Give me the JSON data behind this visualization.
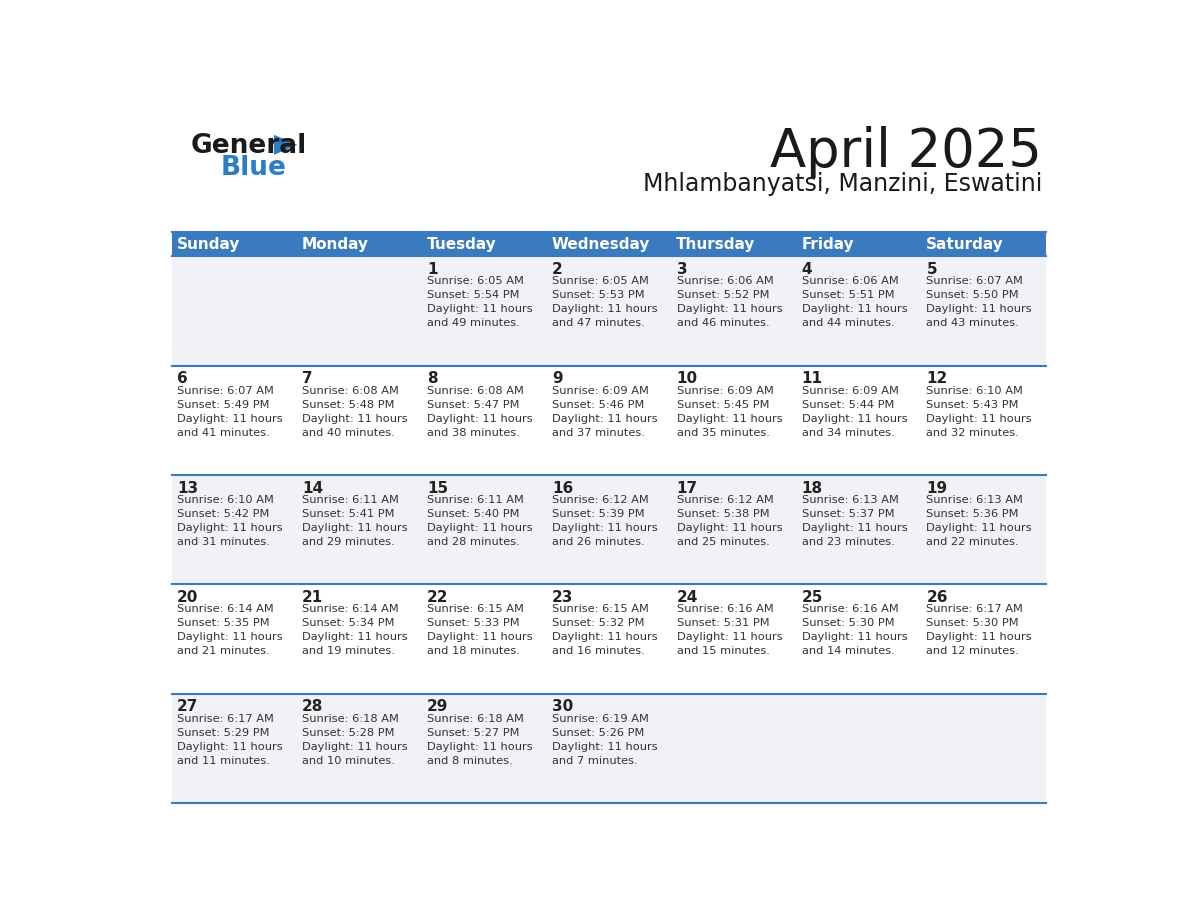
{
  "title": "April 2025",
  "subtitle": "Mhlambanyatsi, Manzini, Eswatini",
  "days_of_week": [
    "Sunday",
    "Monday",
    "Tuesday",
    "Wednesday",
    "Thursday",
    "Friday",
    "Saturday"
  ],
  "header_bg": "#3a7bbf",
  "header_text": "#ffffff",
  "row_bg_odd": "#f0f2f5",
  "row_bg_even": "#ffffff",
  "border_color": "#3a7bbf",
  "text_color": "#333333",
  "day_num_color": "#222222",
  "calendar_data": [
    [
      {
        "day": "",
        "info": ""
      },
      {
        "day": "",
        "info": ""
      },
      {
        "day": "1",
        "info": "Sunrise: 6:05 AM\nSunset: 5:54 PM\nDaylight: 11 hours\nand 49 minutes."
      },
      {
        "day": "2",
        "info": "Sunrise: 6:05 AM\nSunset: 5:53 PM\nDaylight: 11 hours\nand 47 minutes."
      },
      {
        "day": "3",
        "info": "Sunrise: 6:06 AM\nSunset: 5:52 PM\nDaylight: 11 hours\nand 46 minutes."
      },
      {
        "day": "4",
        "info": "Sunrise: 6:06 AM\nSunset: 5:51 PM\nDaylight: 11 hours\nand 44 minutes."
      },
      {
        "day": "5",
        "info": "Sunrise: 6:07 AM\nSunset: 5:50 PM\nDaylight: 11 hours\nand 43 minutes."
      }
    ],
    [
      {
        "day": "6",
        "info": "Sunrise: 6:07 AM\nSunset: 5:49 PM\nDaylight: 11 hours\nand 41 minutes."
      },
      {
        "day": "7",
        "info": "Sunrise: 6:08 AM\nSunset: 5:48 PM\nDaylight: 11 hours\nand 40 minutes."
      },
      {
        "day": "8",
        "info": "Sunrise: 6:08 AM\nSunset: 5:47 PM\nDaylight: 11 hours\nand 38 minutes."
      },
      {
        "day": "9",
        "info": "Sunrise: 6:09 AM\nSunset: 5:46 PM\nDaylight: 11 hours\nand 37 minutes."
      },
      {
        "day": "10",
        "info": "Sunrise: 6:09 AM\nSunset: 5:45 PM\nDaylight: 11 hours\nand 35 minutes."
      },
      {
        "day": "11",
        "info": "Sunrise: 6:09 AM\nSunset: 5:44 PM\nDaylight: 11 hours\nand 34 minutes."
      },
      {
        "day": "12",
        "info": "Sunrise: 6:10 AM\nSunset: 5:43 PM\nDaylight: 11 hours\nand 32 minutes."
      }
    ],
    [
      {
        "day": "13",
        "info": "Sunrise: 6:10 AM\nSunset: 5:42 PM\nDaylight: 11 hours\nand 31 minutes."
      },
      {
        "day": "14",
        "info": "Sunrise: 6:11 AM\nSunset: 5:41 PM\nDaylight: 11 hours\nand 29 minutes."
      },
      {
        "day": "15",
        "info": "Sunrise: 6:11 AM\nSunset: 5:40 PM\nDaylight: 11 hours\nand 28 minutes."
      },
      {
        "day": "16",
        "info": "Sunrise: 6:12 AM\nSunset: 5:39 PM\nDaylight: 11 hours\nand 26 minutes."
      },
      {
        "day": "17",
        "info": "Sunrise: 6:12 AM\nSunset: 5:38 PM\nDaylight: 11 hours\nand 25 minutes."
      },
      {
        "day": "18",
        "info": "Sunrise: 6:13 AM\nSunset: 5:37 PM\nDaylight: 11 hours\nand 23 minutes."
      },
      {
        "day": "19",
        "info": "Sunrise: 6:13 AM\nSunset: 5:36 PM\nDaylight: 11 hours\nand 22 minutes."
      }
    ],
    [
      {
        "day": "20",
        "info": "Sunrise: 6:14 AM\nSunset: 5:35 PM\nDaylight: 11 hours\nand 21 minutes."
      },
      {
        "day": "21",
        "info": "Sunrise: 6:14 AM\nSunset: 5:34 PM\nDaylight: 11 hours\nand 19 minutes."
      },
      {
        "day": "22",
        "info": "Sunrise: 6:15 AM\nSunset: 5:33 PM\nDaylight: 11 hours\nand 18 minutes."
      },
      {
        "day": "23",
        "info": "Sunrise: 6:15 AM\nSunset: 5:32 PM\nDaylight: 11 hours\nand 16 minutes."
      },
      {
        "day": "24",
        "info": "Sunrise: 6:16 AM\nSunset: 5:31 PM\nDaylight: 11 hours\nand 15 minutes."
      },
      {
        "day": "25",
        "info": "Sunrise: 6:16 AM\nSunset: 5:30 PM\nDaylight: 11 hours\nand 14 minutes."
      },
      {
        "day": "26",
        "info": "Sunrise: 6:17 AM\nSunset: 5:30 PM\nDaylight: 11 hours\nand 12 minutes."
      }
    ],
    [
      {
        "day": "27",
        "info": "Sunrise: 6:17 AM\nSunset: 5:29 PM\nDaylight: 11 hours\nand 11 minutes."
      },
      {
        "day": "28",
        "info": "Sunrise: 6:18 AM\nSunset: 5:28 PM\nDaylight: 11 hours\nand 10 minutes."
      },
      {
        "day": "29",
        "info": "Sunrise: 6:18 AM\nSunset: 5:27 PM\nDaylight: 11 hours\nand 8 minutes."
      },
      {
        "day": "30",
        "info": "Sunrise: 6:19 AM\nSunset: 5:26 PM\nDaylight: 11 hours\nand 7 minutes."
      },
      {
        "day": "",
        "info": ""
      },
      {
        "day": "",
        "info": ""
      },
      {
        "day": "",
        "info": ""
      }
    ]
  ],
  "logo_general_color": "#1a1a1a",
  "logo_blue_color": "#2b7ec1",
  "logo_triangle_color": "#2b7ec1",
  "title_fontsize": 38,
  "subtitle_fontsize": 17,
  "header_fontsize": 11,
  "day_num_fontsize": 11,
  "info_fontsize": 8.2
}
